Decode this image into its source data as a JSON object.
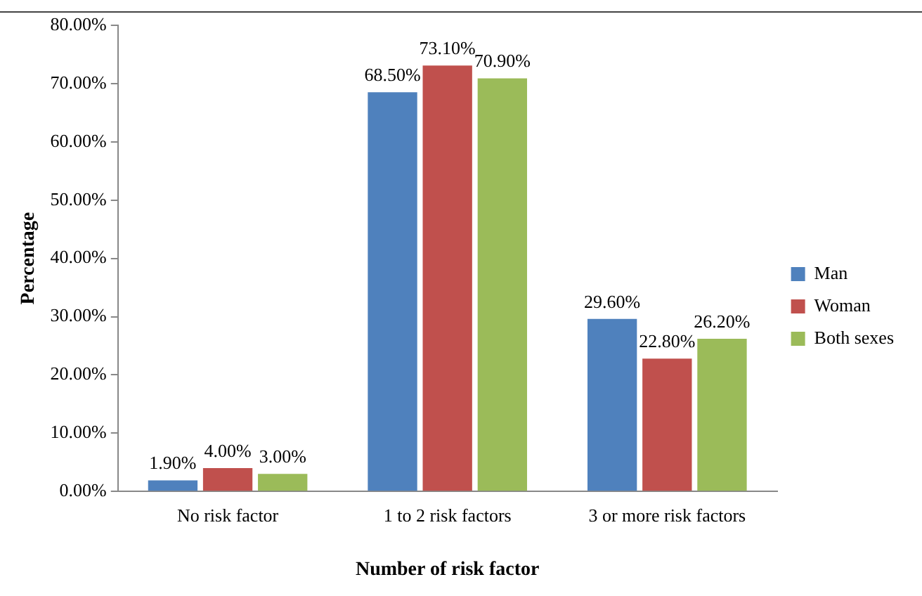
{
  "chart_data": {
    "type": "bar",
    "xlabel": "Number of risk factor",
    "ylabel": "Percentage",
    "categories": [
      "No risk factor",
      "1 to 2 risk factors",
      "3 or more risk factors"
    ],
    "series": [
      {
        "name": "Man",
        "color": "#4f81bd",
        "values": [
          1.9,
          68.5,
          29.6
        ],
        "value_labels": [
          "1.90%",
          "68.50%",
          "29.60%"
        ]
      },
      {
        "name": "Woman",
        "color": "#c0504d",
        "values": [
          4.0,
          73.1,
          22.8
        ],
        "value_labels": [
          "4.00%",
          "73.10%",
          "22.80%"
        ]
      },
      {
        "name": "Both sexes",
        "color": "#9bbb59",
        "values": [
          3.0,
          70.9,
          26.2
        ],
        "value_labels": [
          "3.00%",
          "70.90%",
          "26.20%"
        ]
      }
    ],
    "ylim": [
      0,
      80
    ],
    "yticks": [
      {
        "value": 0,
        "label": "0.00%"
      },
      {
        "value": 10,
        "label": "10.00%"
      },
      {
        "value": 20,
        "label": "20.00%"
      },
      {
        "value": 30,
        "label": "30.00%"
      },
      {
        "value": 40,
        "label": "40.00%"
      },
      {
        "value": 50,
        "label": "50.00%"
      },
      {
        "value": 60,
        "label": "60.00%"
      },
      {
        "value": 70,
        "label": "70.00%"
      },
      {
        "value": 80,
        "label": "80.00%"
      }
    ],
    "grid": false,
    "legend": "right"
  }
}
